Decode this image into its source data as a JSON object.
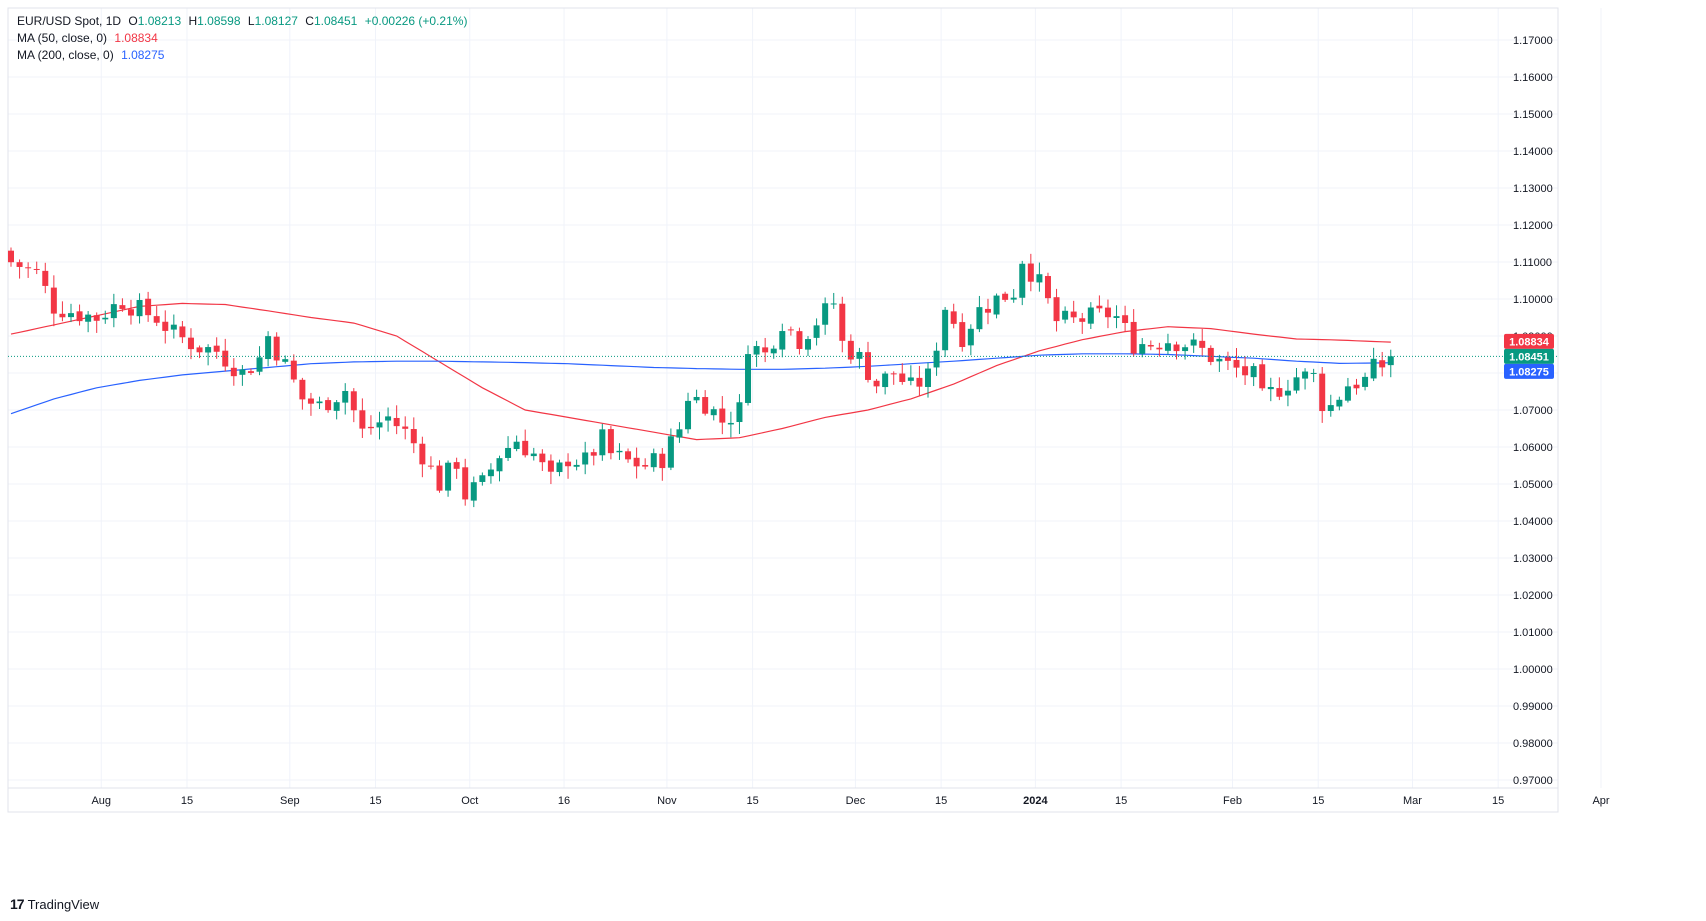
{
  "header": {
    "symbol": "EUR/USD Spot, 1D",
    "open_label": "O",
    "open": "1.08213",
    "high_label": "H",
    "high": "1.08598",
    "low_label": "L",
    "low": "1.08127",
    "close_label": "C",
    "close": "1.08451",
    "change": "+0.00226 (+0.21%)"
  },
  "indicators": [
    {
      "label": "MA (50, close, 0)",
      "value": "1.08834",
      "color": "#f23645"
    },
    {
      "label": "MA (200, close, 0)",
      "value": "1.08275",
      "color": "#2962ff"
    }
  ],
  "branding": {
    "logo": "17",
    "name": "TradingView"
  },
  "colors": {
    "up": "#089981",
    "down": "#f23645",
    "grid": "#f0f3fa",
    "axis_text": "#131722",
    "last_price_line": "#089981"
  },
  "chart_data": {
    "type": "candlestick",
    "title": "EUR/USD Spot, 1D",
    "ylim": [
      0.965,
      1.1785
    ],
    "y_ticks": [
      "0.97000",
      "0.98000",
      "0.99000",
      "1.00000",
      "1.01000",
      "1.02000",
      "1.03000",
      "1.04000",
      "1.05000",
      "1.06000",
      "1.07000",
      "1.08000",
      "1.09000",
      "1.10000",
      "1.11000",
      "1.12000",
      "1.13000",
      "1.14000",
      "1.15000",
      "1.16000",
      "1.17000"
    ],
    "x_ticks": [
      {
        "label": "Aug",
        "bar": 11,
        "bold": false
      },
      {
        "label": "15",
        "bar": 21,
        "bold": false
      },
      {
        "label": "Sep",
        "bar": 33,
        "bold": false
      },
      {
        "label": "15",
        "bar": 43,
        "bold": false
      },
      {
        "label": "Oct",
        "bar": 54,
        "bold": false
      },
      {
        "label": "16",
        "bar": 65,
        "bold": false
      },
      {
        "label": "Nov",
        "bar": 77,
        "bold": false
      },
      {
        "label": "15",
        "bar": 87,
        "bold": false
      },
      {
        "label": "Dec",
        "bar": 99,
        "bold": false
      },
      {
        "label": "15",
        "bar": 109,
        "bold": false
      },
      {
        "label": "2024",
        "bar": 120,
        "bold": true
      },
      {
        "label": "15",
        "bar": 130,
        "bold": false
      },
      {
        "label": "Feb",
        "bar": 143,
        "bold": false
      },
      {
        "label": "15",
        "bar": 153,
        "bold": false
      },
      {
        "label": "Mar",
        "bar": 164,
        "bold": false
      },
      {
        "label": "15",
        "bar": 174,
        "bold": false
      },
      {
        "label": "Apr",
        "bar": 186,
        "bold": false
      }
    ],
    "last_bar": 161,
    "last_price": 1.08451,
    "price_labels": [
      {
        "series": "MA 50",
        "value": 1.08834,
        "text": "1.08834",
        "color": "#f23645"
      },
      {
        "series": "Close",
        "value": 1.08451,
        "text": "1.08451",
        "color": "#089981"
      },
      {
        "series": "MA 200",
        "value": 1.08275,
        "text": "1.08275",
        "color": "#2962ff"
      }
    ],
    "ohlc_anchor_close": [
      [
        0,
        1.11
      ],
      [
        3,
        1.107
      ],
      [
        5,
        1.098
      ],
      [
        8,
        1.096
      ],
      [
        10,
        1.095
      ],
      [
        13,
        1.0995
      ],
      [
        15,
        1.097
      ],
      [
        17,
        1.095
      ],
      [
        19,
        1.0905
      ],
      [
        22,
        1.087
      ],
      [
        24,
        1.086
      ],
      [
        27,
        1.08
      ],
      [
        29,
        1.084
      ],
      [
        30,
        1.09
      ],
      [
        32,
        1.082
      ],
      [
        34,
        1.073
      ],
      [
        36,
        1.071
      ],
      [
        39,
        1.0755
      ],
      [
        41,
        1.064
      ],
      [
        44,
        1.068
      ],
      [
        46,
        1.064
      ],
      [
        48,
        1.058
      ],
      [
        50,
        1.05
      ],
      [
        52,
        1.056
      ],
      [
        53,
        1.047
      ],
      [
        55,
        1.05
      ],
      [
        57,
        1.058
      ],
      [
        59,
        1.062
      ],
      [
        61,
        1.058
      ],
      [
        63,
        1.051
      ],
      [
        65,
        1.057
      ],
      [
        67,
        1.056
      ],
      [
        69,
        1.062
      ],
      [
        70,
        1.058
      ],
      [
        72,
        1.056
      ],
      [
        74,
        1.055
      ],
      [
        76,
        1.057
      ],
      [
        78,
        1.065
      ],
      [
        79,
        1.074
      ],
      [
        81,
        1.072
      ],
      [
        83,
        1.067
      ],
      [
        85,
        1.07
      ],
      [
        86,
        1.088
      ],
      [
        88,
        1.085
      ],
      [
        90,
        1.094
      ],
      [
        92,
        1.089
      ],
      [
        94,
        1.094
      ],
      [
        96,
        1.099
      ],
      [
        97,
        1.088
      ],
      [
        99,
        1.084
      ],
      [
        101,
        1.077
      ],
      [
        103,
        1.08
      ],
      [
        105,
        1.076
      ],
      [
        107,
        1.079
      ],
      [
        108,
        1.088
      ],
      [
        109,
        1.098
      ],
      [
        111,
        1.09
      ],
      [
        113,
        1.097
      ],
      [
        115,
        1.1
      ],
      [
        117,
        1.102
      ],
      [
        118,
        1.111
      ],
      [
        120,
        1.104
      ],
      [
        122,
        1.094
      ],
      [
        124,
        1.094
      ],
      [
        126,
        1.095
      ],
      [
        128,
        1.096
      ],
      [
        129,
        1.095
      ],
      [
        131,
        1.088
      ],
      [
        133,
        1.088
      ],
      [
        135,
        1.089
      ],
      [
        137,
        1.088
      ],
      [
        139,
        1.086
      ],
      [
        141,
        1.083
      ],
      [
        143,
        1.081
      ],
      [
        145,
        1.079
      ],
      [
        146,
        1.073
      ],
      [
        148,
        1.076
      ],
      [
        150,
        1.079
      ],
      [
        152,
        1.079
      ],
      [
        153,
        1.072
      ],
      [
        154,
        1.071
      ],
      [
        156,
        1.077
      ],
      [
        158,
        1.078
      ],
      [
        159,
        1.081
      ],
      [
        160,
        1.082
      ],
      [
        161,
        1.08451
      ]
    ],
    "ma50": [
      [
        0,
        1.0905
      ],
      [
        5,
        1.093
      ],
      [
        10,
        1.0955
      ],
      [
        15,
        1.098
      ],
      [
        20,
        1.0988
      ],
      [
        25,
        1.0985
      ],
      [
        30,
        1.0968
      ],
      [
        35,
        1.095
      ],
      [
        40,
        1.0935
      ],
      [
        45,
        1.09
      ],
      [
        50,
        1.083
      ],
      [
        55,
        1.076
      ],
      [
        60,
        1.07
      ],
      [
        65,
        1.068
      ],
      [
        70,
        1.066
      ],
      [
        75,
        1.064
      ],
      [
        80,
        1.062
      ],
      [
        85,
        1.0625
      ],
      [
        90,
        1.065
      ],
      [
        95,
        1.068
      ],
      [
        100,
        1.07
      ],
      [
        105,
        1.073
      ],
      [
        110,
        1.077
      ],
      [
        115,
        1.082
      ],
      [
        120,
        1.086
      ],
      [
        125,
        1.089
      ],
      [
        130,
        1.0912
      ],
      [
        135,
        1.0925
      ],
      [
        140,
        1.092
      ],
      [
        145,
        1.0905
      ],
      [
        150,
        1.0892
      ],
      [
        155,
        1.0889
      ],
      [
        161,
        1.08834
      ]
    ],
    "ma200": [
      [
        0,
        1.069
      ],
      [
        5,
        1.073
      ],
      [
        10,
        1.076
      ],
      [
        15,
        1.078
      ],
      [
        20,
        1.0795
      ],
      [
        25,
        1.0805
      ],
      [
        30,
        1.0815
      ],
      [
        35,
        1.0825
      ],
      [
        40,
        1.083
      ],
      [
        45,
        1.0832
      ],
      [
        50,
        1.0832
      ],
      [
        55,
        1.083
      ],
      [
        60,
        1.0828
      ],
      [
        65,
        1.0825
      ],
      [
        70,
        1.082
      ],
      [
        75,
        1.0815
      ],
      [
        80,
        1.0812
      ],
      [
        85,
        1.081
      ],
      [
        90,
        1.081
      ],
      [
        95,
        1.0813
      ],
      [
        100,
        1.0818
      ],
      [
        105,
        1.0825
      ],
      [
        110,
        1.0832
      ],
      [
        115,
        1.084
      ],
      [
        120,
        1.0848
      ],
      [
        125,
        1.0852
      ],
      [
        130,
        1.0852
      ],
      [
        135,
        1.085
      ],
      [
        140,
        1.0845
      ],
      [
        145,
        1.084
      ],
      [
        150,
        1.0832
      ],
      [
        155,
        1.0826
      ],
      [
        161,
        1.08275
      ]
    ]
  }
}
